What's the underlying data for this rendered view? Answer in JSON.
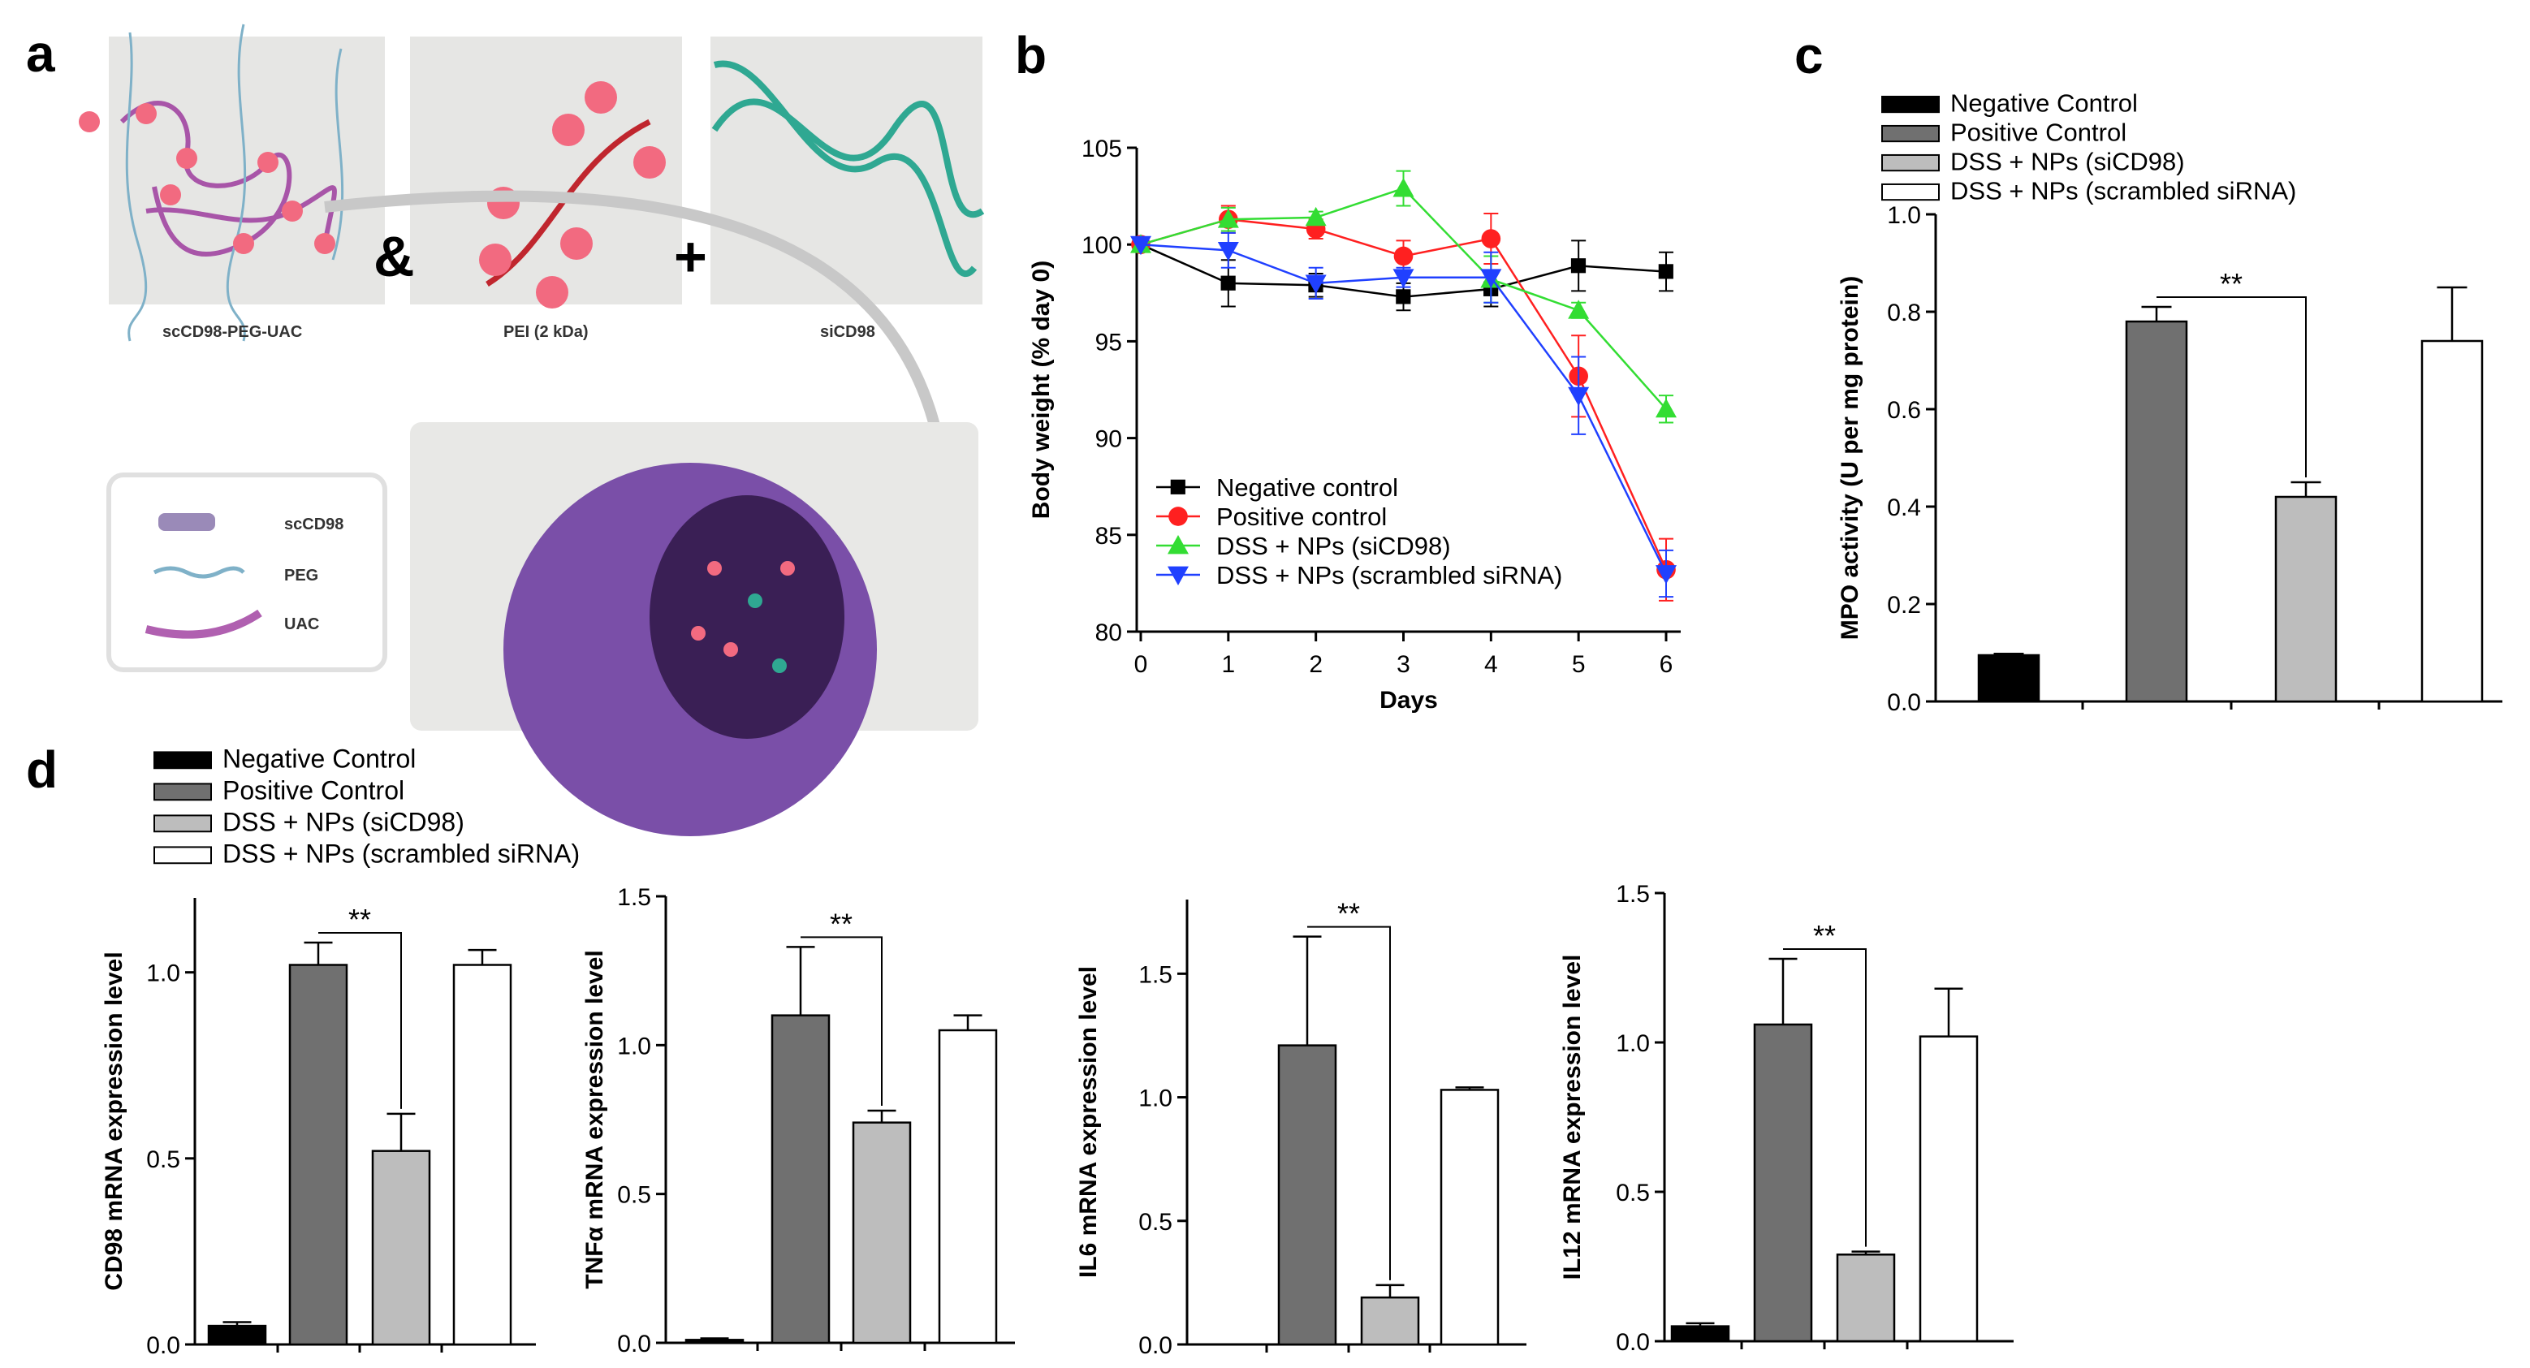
{
  "panel_labels": [
    "a",
    "b",
    "c",
    "d"
  ],
  "schematic": {
    "components": [
      "scCD98-PEG-UAC",
      "PEI (2 kDa)",
      "siCD98"
    ],
    "operators": [
      "&",
      "+"
    ],
    "legend": [
      "scCD98",
      "PEG",
      "UAC"
    ]
  },
  "colors": {
    "negative": "#000000",
    "positive": "#707070",
    "sicd98": "#bdbdbd",
    "scrambled": "#ffffff",
    "line_negative": "#000000",
    "line_positive": "#ff2020",
    "line_sicd98": "#33dd33",
    "line_scrambled": "#2040ff"
  },
  "chart_data": [
    {
      "id": "b",
      "type": "line",
      "xlabel": "Days",
      "ylabel": "Body weight (% day 0)",
      "x": [
        0,
        1,
        2,
        3,
        4,
        5,
        6
      ],
      "xticks": [
        "0",
        "1",
        "2",
        "3",
        "4",
        "5",
        "6"
      ],
      "ylim": [
        80,
        105
      ],
      "yticks": [
        "80",
        "85",
        "90",
        "95",
        "100",
        "105"
      ],
      "legend_position": "bottom-left",
      "series": [
        {
          "name": "Negative control",
          "marker": "square",
          "values": [
            100,
            98.0,
            97.9,
            97.3,
            97.7,
            98.9,
            98.6
          ],
          "errors": [
            0,
            1.2,
            0.6,
            0.7,
            0.9,
            1.3,
            1.0
          ]
        },
        {
          "name": "Positive control",
          "marker": "circle",
          "values": [
            100,
            101.3,
            100.8,
            99.4,
            100.3,
            93.2,
            83.2
          ],
          "errors": [
            0,
            0.7,
            0.5,
            0.8,
            1.3,
            2.1,
            1.6
          ]
        },
        {
          "name": "DSS + NPs (siCD98)",
          "marker": "triangle-up",
          "values": [
            100,
            101.3,
            101.4,
            102.9,
            98.2,
            96.6,
            91.5
          ],
          "errors": [
            0,
            0.6,
            0.3,
            0.9,
            1.2,
            0.4,
            0.7
          ]
        },
        {
          "name": "DSS + NPs (scrambled siRNA)",
          "marker": "triangle-down",
          "values": [
            100,
            99.7,
            98.0,
            98.3,
            98.3,
            92.2,
            83.0
          ],
          "errors": [
            0,
            0.9,
            0.8,
            0.5,
            1.3,
            2.0,
            1.2
          ]
        }
      ]
    },
    {
      "id": "c",
      "type": "bar",
      "ylabel": "MPO activity (U per mg protein)",
      "ylim": [
        0,
        1.0
      ],
      "yticks": [
        "0.0",
        "0.2",
        "0.4",
        "0.6",
        "0.8",
        "1.0"
      ],
      "legend_position": "top-left",
      "categories": [
        "Negative Control",
        "Positive Control",
        "DSS + NPs (siCD98)",
        "DSS + NPs (scrambled siRNA)"
      ],
      "values": [
        0.095,
        0.78,
        0.42,
        0.74
      ],
      "errors": [
        0.003,
        0.03,
        0.03,
        0.11
      ],
      "significance": {
        "label": "**",
        "between": [
          1,
          2
        ]
      }
    },
    {
      "id": "d",
      "type": "bar",
      "legend_position": "top-left",
      "categories": [
        "Negative Control",
        "Positive Control",
        "DSS + NPs (siCD98)",
        "DSS + NPs (scrambled siRNA)"
      ],
      "subplots": [
        {
          "ylabel": "CD98 mRNA expression level",
          "ylim": [
            0,
            1.2
          ],
          "yticks": [
            "0.0",
            "0.5",
            "1.0"
          ],
          "values": [
            0.05,
            1.02,
            0.52,
            1.02
          ],
          "errors": [
            0.01,
            0.06,
            0.1,
            0.04
          ],
          "significance": {
            "label": "**",
            "between": [
              1,
              2
            ]
          }
        },
        {
          "ylabel": "TNFα mRNA expression level",
          "ylim": [
            0,
            1.5
          ],
          "yticks": [
            "0.0",
            "0.5",
            "1.0",
            "1.5"
          ],
          "values": [
            0.01,
            1.1,
            0.74,
            1.05
          ],
          "errors": [
            0.005,
            0.23,
            0.04,
            0.05
          ],
          "significance": {
            "label": "**",
            "between": [
              1,
              2
            ]
          }
        },
        {
          "ylabel": "IL6 mRNA expression level",
          "ylim": [
            0,
            1.8
          ],
          "yticks": [
            "0.0",
            "0.5",
            "1.0",
            "1.5"
          ],
          "values": [
            0.0,
            1.21,
            0.19,
            1.03
          ],
          "errors": [
            0,
            0.44,
            0.05,
            0.01
          ],
          "significance": {
            "label": "**",
            "between": [
              1,
              2
            ]
          }
        },
        {
          "ylabel": "IL12 mRNA expression level",
          "ylim": [
            0,
            1.5
          ],
          "yticks": [
            "0.0",
            "0.5",
            "1.0",
            "1.5"
          ],
          "values": [
            0.05,
            1.06,
            0.29,
            1.02
          ],
          "errors": [
            0.01,
            0.22,
            0.01,
            0.16
          ],
          "significance": {
            "label": "**",
            "between": [
              1,
              2
            ]
          }
        }
      ]
    }
  ]
}
